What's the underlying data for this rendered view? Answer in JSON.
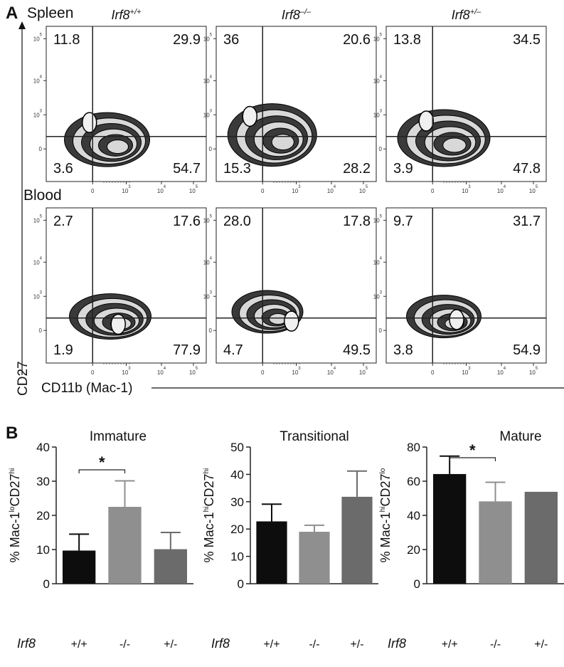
{
  "panelA": {
    "letter": "A",
    "col_genotypes": [
      {
        "base": "Irf8",
        "sup": "+/+"
      },
      {
        "base": "Irf8",
        "sup": "–/–"
      },
      {
        "base": "Irf8",
        "sup": "+/–"
      }
    ],
    "rows": [
      {
        "label": "Spleen",
        "plots": [
          {
            "ul": "11.8",
            "ur": "29.9",
            "ll": "3.6",
            "lr": "54.7"
          },
          {
            "ul": "36",
            "ur": "20.6",
            "ll": "15.3",
            "lr": "28.2"
          },
          {
            "ul": "13.8",
            "ur": "34.5",
            "ll": "3.9",
            "lr": "47.8"
          }
        ]
      },
      {
        "label": "Blood",
        "plots": [
          {
            "ul": "2.7",
            "ur": "17.6",
            "ll": "1.9",
            "lr": "77.9"
          },
          {
            "ul": "28.0",
            "ur": "17.8",
            "ll": "4.7",
            "lr": "49.5"
          },
          {
            "ul": "9.7",
            "ur": "31.7",
            "ll": "3.8",
            "lr": "54.9"
          }
        ]
      }
    ],
    "y_axis_title": "CD27",
    "x_axis_title": "CD11b (Mac-1)",
    "y_ticks": [
      {
        "base": "10",
        "sup": "5"
      },
      {
        "base": "10",
        "sup": "4"
      },
      {
        "base": "10",
        "sup": "3"
      },
      {
        "base": "0",
        "sup": ""
      }
    ],
    "x_ticks": [
      {
        "base": "0",
        "sup": ""
      },
      {
        "base": "10",
        "sup": "3"
      },
      {
        "base": "10",
        "sup": "4"
      },
      {
        "base": "10",
        "sup": "5"
      }
    ]
  },
  "panelB": {
    "letter": "B",
    "group_prefix": "Irf8",
    "bar_colors": [
      "#0d0d0d",
      "#8f8f8f",
      "#6b6b6b"
    ]
  },
  "chart_data": [
    {
      "type": "bar",
      "title": "Immature",
      "categories": [
        "+/+",
        "-/-",
        "+/-"
      ],
      "values": [
        9.7,
        22.5,
        10.1
      ],
      "errors": [
        4.8,
        7.6,
        4.9
      ],
      "ylabel": {
        "prefix": "% Mac-1",
        "sup1": "lo",
        "mid": "CD27",
        "sup2": "hi"
      },
      "ylim": [
        0,
        40
      ],
      "yticks": [
        0,
        10,
        20,
        30,
        40
      ],
      "significance": {
        "from": 0,
        "to": 1,
        "label": "*"
      }
    },
    {
      "type": "bar",
      "title": "Transitional",
      "categories": [
        "+/+",
        "-/-",
        "+/-"
      ],
      "values": [
        22.8,
        19.0,
        31.8
      ],
      "errors": [
        6.3,
        2.4,
        9.4
      ],
      "ylabel": {
        "prefix": "% Mac-1",
        "sup1": "hi",
        "mid": "CD27",
        "sup2": "hi"
      },
      "ylim": [
        0,
        50
      ],
      "yticks": [
        0,
        10,
        20,
        30,
        40,
        50
      ]
    },
    {
      "type": "bar",
      "title": "Mature",
      "categories": [
        "+/+",
        "-/-",
        "+/-"
      ],
      "values": [
        64.2,
        48.2,
        53.8
      ],
      "errors": [
        10.5,
        11.2,
        0
      ],
      "ylabel": {
        "prefix": "% Mac-1",
        "sup1": "hi",
        "mid": "CD27",
        "sup2": "lo"
      },
      "ylim": [
        0,
        80
      ],
      "yticks": [
        0,
        20,
        40,
        60,
        80
      ],
      "significance": {
        "from": 0,
        "to": 1,
        "label": "*"
      }
    }
  ]
}
